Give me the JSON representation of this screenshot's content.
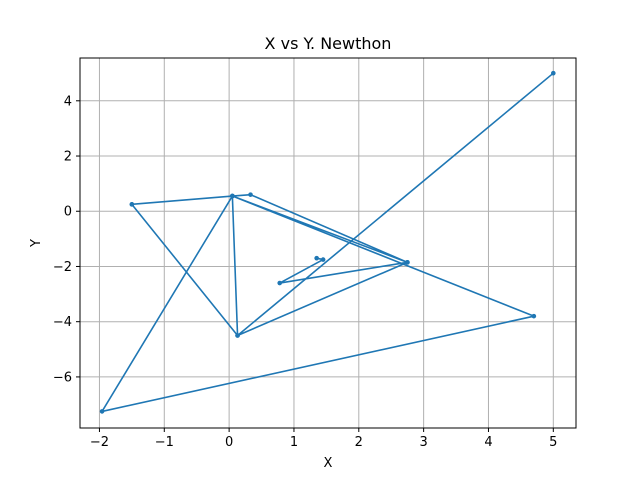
{
  "chart_data": {
    "type": "line",
    "title": "X vs Y. Newthon",
    "xlabel": "X",
    "ylabel": "Y",
    "xlim": [
      -2.3,
      5.35
    ],
    "ylim": [
      -7.85,
      5.55
    ],
    "xticks": [
      -2,
      -1,
      0,
      1,
      2,
      3,
      4,
      5
    ],
    "yticks": [
      -6,
      -4,
      -2,
      0,
      2,
      4
    ],
    "grid": true,
    "color": "#1f77b4",
    "marker": "point",
    "series": [
      {
        "name": "",
        "points": [
          [
            5.0,
            5.0
          ],
          [
            0.13,
            -4.5
          ],
          [
            2.75,
            -1.85
          ],
          [
            0.33,
            0.6
          ],
          [
            0.05,
            0.55
          ],
          [
            -1.96,
            -7.25
          ],
          [
            4.7,
            -3.8
          ],
          [
            0.05,
            0.55
          ],
          [
            -1.5,
            0.25
          ],
          [
            0.13,
            -4.5
          ],
          [
            0.05,
            0.55
          ],
          [
            -1.5,
            0.25
          ],
          [
            0.05,
            0.55
          ],
          [
            2.75,
            -1.85
          ],
          [
            0.78,
            -2.6
          ],
          [
            1.45,
            -1.75
          ],
          [
            1.35,
            -1.7
          ]
        ]
      }
    ]
  }
}
